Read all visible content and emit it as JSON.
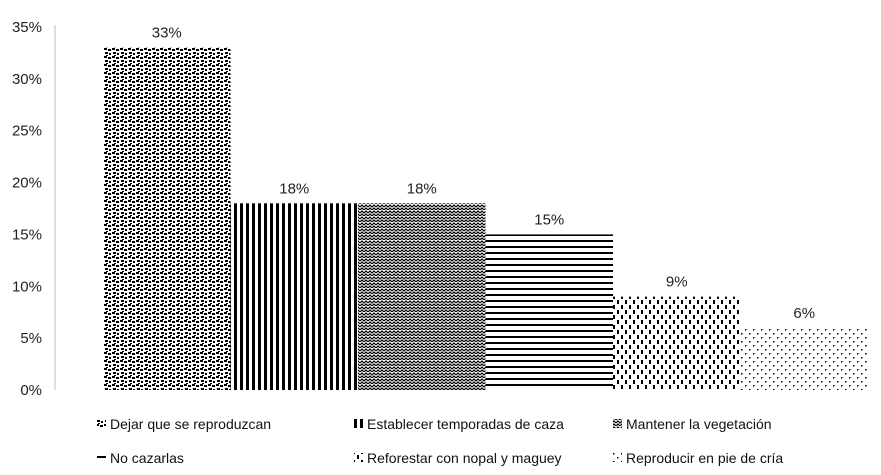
{
  "chart_data": {
    "type": "bar",
    "title": "",
    "xlabel": "",
    "ylabel": "",
    "ylim": [
      0,
      35
    ],
    "yticks": [
      "0%",
      "5%",
      "10%",
      "15%",
      "20%",
      "25%",
      "30%",
      "35%"
    ],
    "yticks_values": [
      0,
      5,
      10,
      15,
      20,
      25,
      30,
      35
    ],
    "grid": false,
    "legend_position": "bottom",
    "categories": [
      "Dejar que se reproduzcan",
      "Establecer temporadas de caza",
      "Mantener la vegetación",
      "No cazarlas",
      "Reforestar con nopal y maguey",
      "Reproducir en pie de cría"
    ],
    "values": [
      33,
      18,
      18,
      15,
      9,
      6
    ],
    "data_labels": [
      "33%",
      "18%",
      "18%",
      "15%",
      "9%",
      "6%"
    ],
    "patterns": [
      "checker",
      "vertical-lines",
      "wave",
      "horizontal-lines",
      "dashes",
      "dots"
    ]
  }
}
